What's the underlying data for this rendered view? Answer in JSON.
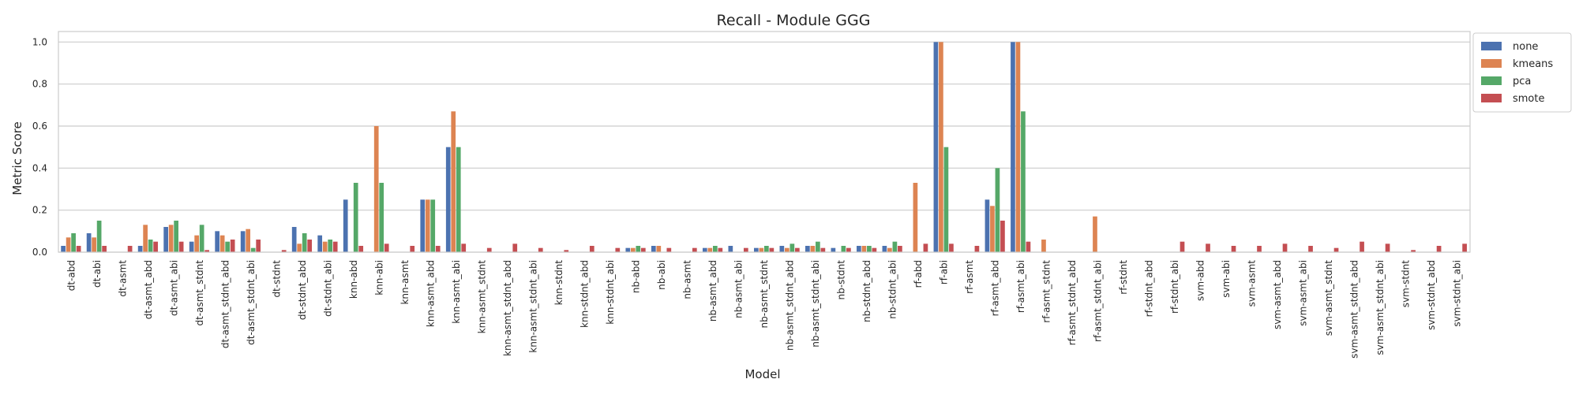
{
  "chart_data": {
    "type": "bar",
    "title": "Recall - Module GGG",
    "xlabel": "Model",
    "ylabel": "Metric Score",
    "ylim": [
      0,
      1.05
    ],
    "yticks": [
      "0.0",
      "0.2",
      "0.4",
      "0.6",
      "0.8",
      "1.0"
    ],
    "grid": true,
    "legend_position": "right-outside",
    "categories": [
      "dt-abd",
      "dt-abi",
      "dt-asmt",
      "dt-asmt_abd",
      "dt-asmt_abi",
      "dt-asmt_stdnt",
      "dt-asmt_stdnt_abd",
      "dt-asmt_stdnt_abi",
      "dt-stdnt",
      "dt-stdnt_abd",
      "dt-stdnt_abi",
      "knn-abd",
      "knn-abi",
      "knn-asmt",
      "knn-asmt_abd",
      "knn-asmt_abi",
      "knn-asmt_stdnt",
      "knn-asmt_stdnt_abd",
      "knn-asmt_stdnt_abi",
      "knn-stdnt",
      "knn-stdnt_abd",
      "knn-stdnt_abi",
      "nb-abd",
      "nb-abi",
      "nb-asmt",
      "nb-asmt_abd",
      "nb-asmt_abi",
      "nb-asmt_stdnt",
      "nb-asmt_stdnt_abd",
      "nb-asmt_stdnt_abi",
      "nb-stdnt",
      "nb-stdnt_abd",
      "nb-stdnt_abi",
      "rf-abd",
      "rf-abi",
      "rf-asmt",
      "rf-asmt_abd",
      "rf-asmt_abi",
      "rf-asmt_stdnt",
      "rf-asmt_stdnt_abd",
      "rf-asmt_stdnt_abi",
      "rf-stdnt",
      "rf-stdnt_abd",
      "rf-stdnt_abi",
      "svm-abd",
      "svm-abi",
      "svm-asmt",
      "svm-asmt_abd",
      "svm-asmt_abi",
      "svm-asmt_stdnt",
      "svm-asmt_stdnt_abd",
      "svm-asmt_stdnt_abi",
      "svm-stdnt",
      "svm-stdnt_abd",
      "svm-stdnt_abi"
    ],
    "series": [
      {
        "name": "none",
        "color": "#4c72b0",
        "values": [
          0.03,
          0.09,
          0,
          0.03,
          0.12,
          0.05,
          0.1,
          0.1,
          0,
          0.12,
          0.08,
          0.25,
          0,
          0,
          0.25,
          0.5,
          0,
          0,
          0,
          0,
          0,
          0,
          0.02,
          0.03,
          0,
          0.02,
          0.03,
          0.02,
          0.03,
          0.03,
          0.02,
          0.03,
          0.03,
          0,
          1.0,
          0,
          0.25,
          1.0,
          0,
          0,
          0,
          0,
          0,
          0,
          0,
          0,
          0,
          0,
          0,
          0,
          0,
          0,
          0,
          0,
          0
        ]
      },
      {
        "name": "kmeans",
        "color": "#dd8452",
        "values": [
          0.07,
          0.07,
          0,
          0.13,
          0.13,
          0.08,
          0.08,
          0.11,
          0,
          0.04,
          0.05,
          0,
          0.6,
          0,
          0.25,
          0.67,
          0,
          0,
          0,
          0,
          0,
          0,
          0.02,
          0.03,
          0,
          0.02,
          0,
          0.02,
          0.02,
          0.03,
          0,
          0.03,
          0.02,
          0.33,
          1.0,
          0,
          0.22,
          1.0,
          0.06,
          0,
          0.17,
          0,
          0,
          0,
          0,
          0,
          0,
          0,
          0,
          0,
          0,
          0,
          0,
          0,
          0
        ]
      },
      {
        "name": "pca",
        "color": "#55a868",
        "values": [
          0.09,
          0.15,
          0,
          0.06,
          0.15,
          0.13,
          0.05,
          0.02,
          0,
          0.09,
          0.06,
          0.33,
          0.33,
          0,
          0.25,
          0.5,
          0,
          0,
          0,
          0,
          0,
          0,
          0.03,
          0,
          0,
          0.03,
          0,
          0.03,
          0.04,
          0.05,
          0.03,
          0.03,
          0.05,
          0,
          0.5,
          0,
          0.4,
          0.67,
          0,
          0,
          0,
          0,
          0,
          0,
          0,
          0,
          0,
          0,
          0,
          0,
          0,
          0,
          0,
          0,
          0
        ]
      },
      {
        "name": "smote",
        "color": "#c44e52",
        "values": [
          0.03,
          0.03,
          0.03,
          0.05,
          0.05,
          0.01,
          0.06,
          0.06,
          0.01,
          0.06,
          0.05,
          0.03,
          0.04,
          0.03,
          0.03,
          0.04,
          0.02,
          0.04,
          0.02,
          0.01,
          0.03,
          0.02,
          0.02,
          0.02,
          0.02,
          0.02,
          0.02,
          0.02,
          0.02,
          0.02,
          0.02,
          0.02,
          0.03,
          0.04,
          0.04,
          0.03,
          0.15,
          0.05,
          0,
          0,
          0,
          0,
          0,
          0.05,
          0.04,
          0.03,
          0.03,
          0.04,
          0.03,
          0.02,
          0.05,
          0.04,
          0.01,
          0.03,
          0.04
        ]
      }
    ]
  }
}
